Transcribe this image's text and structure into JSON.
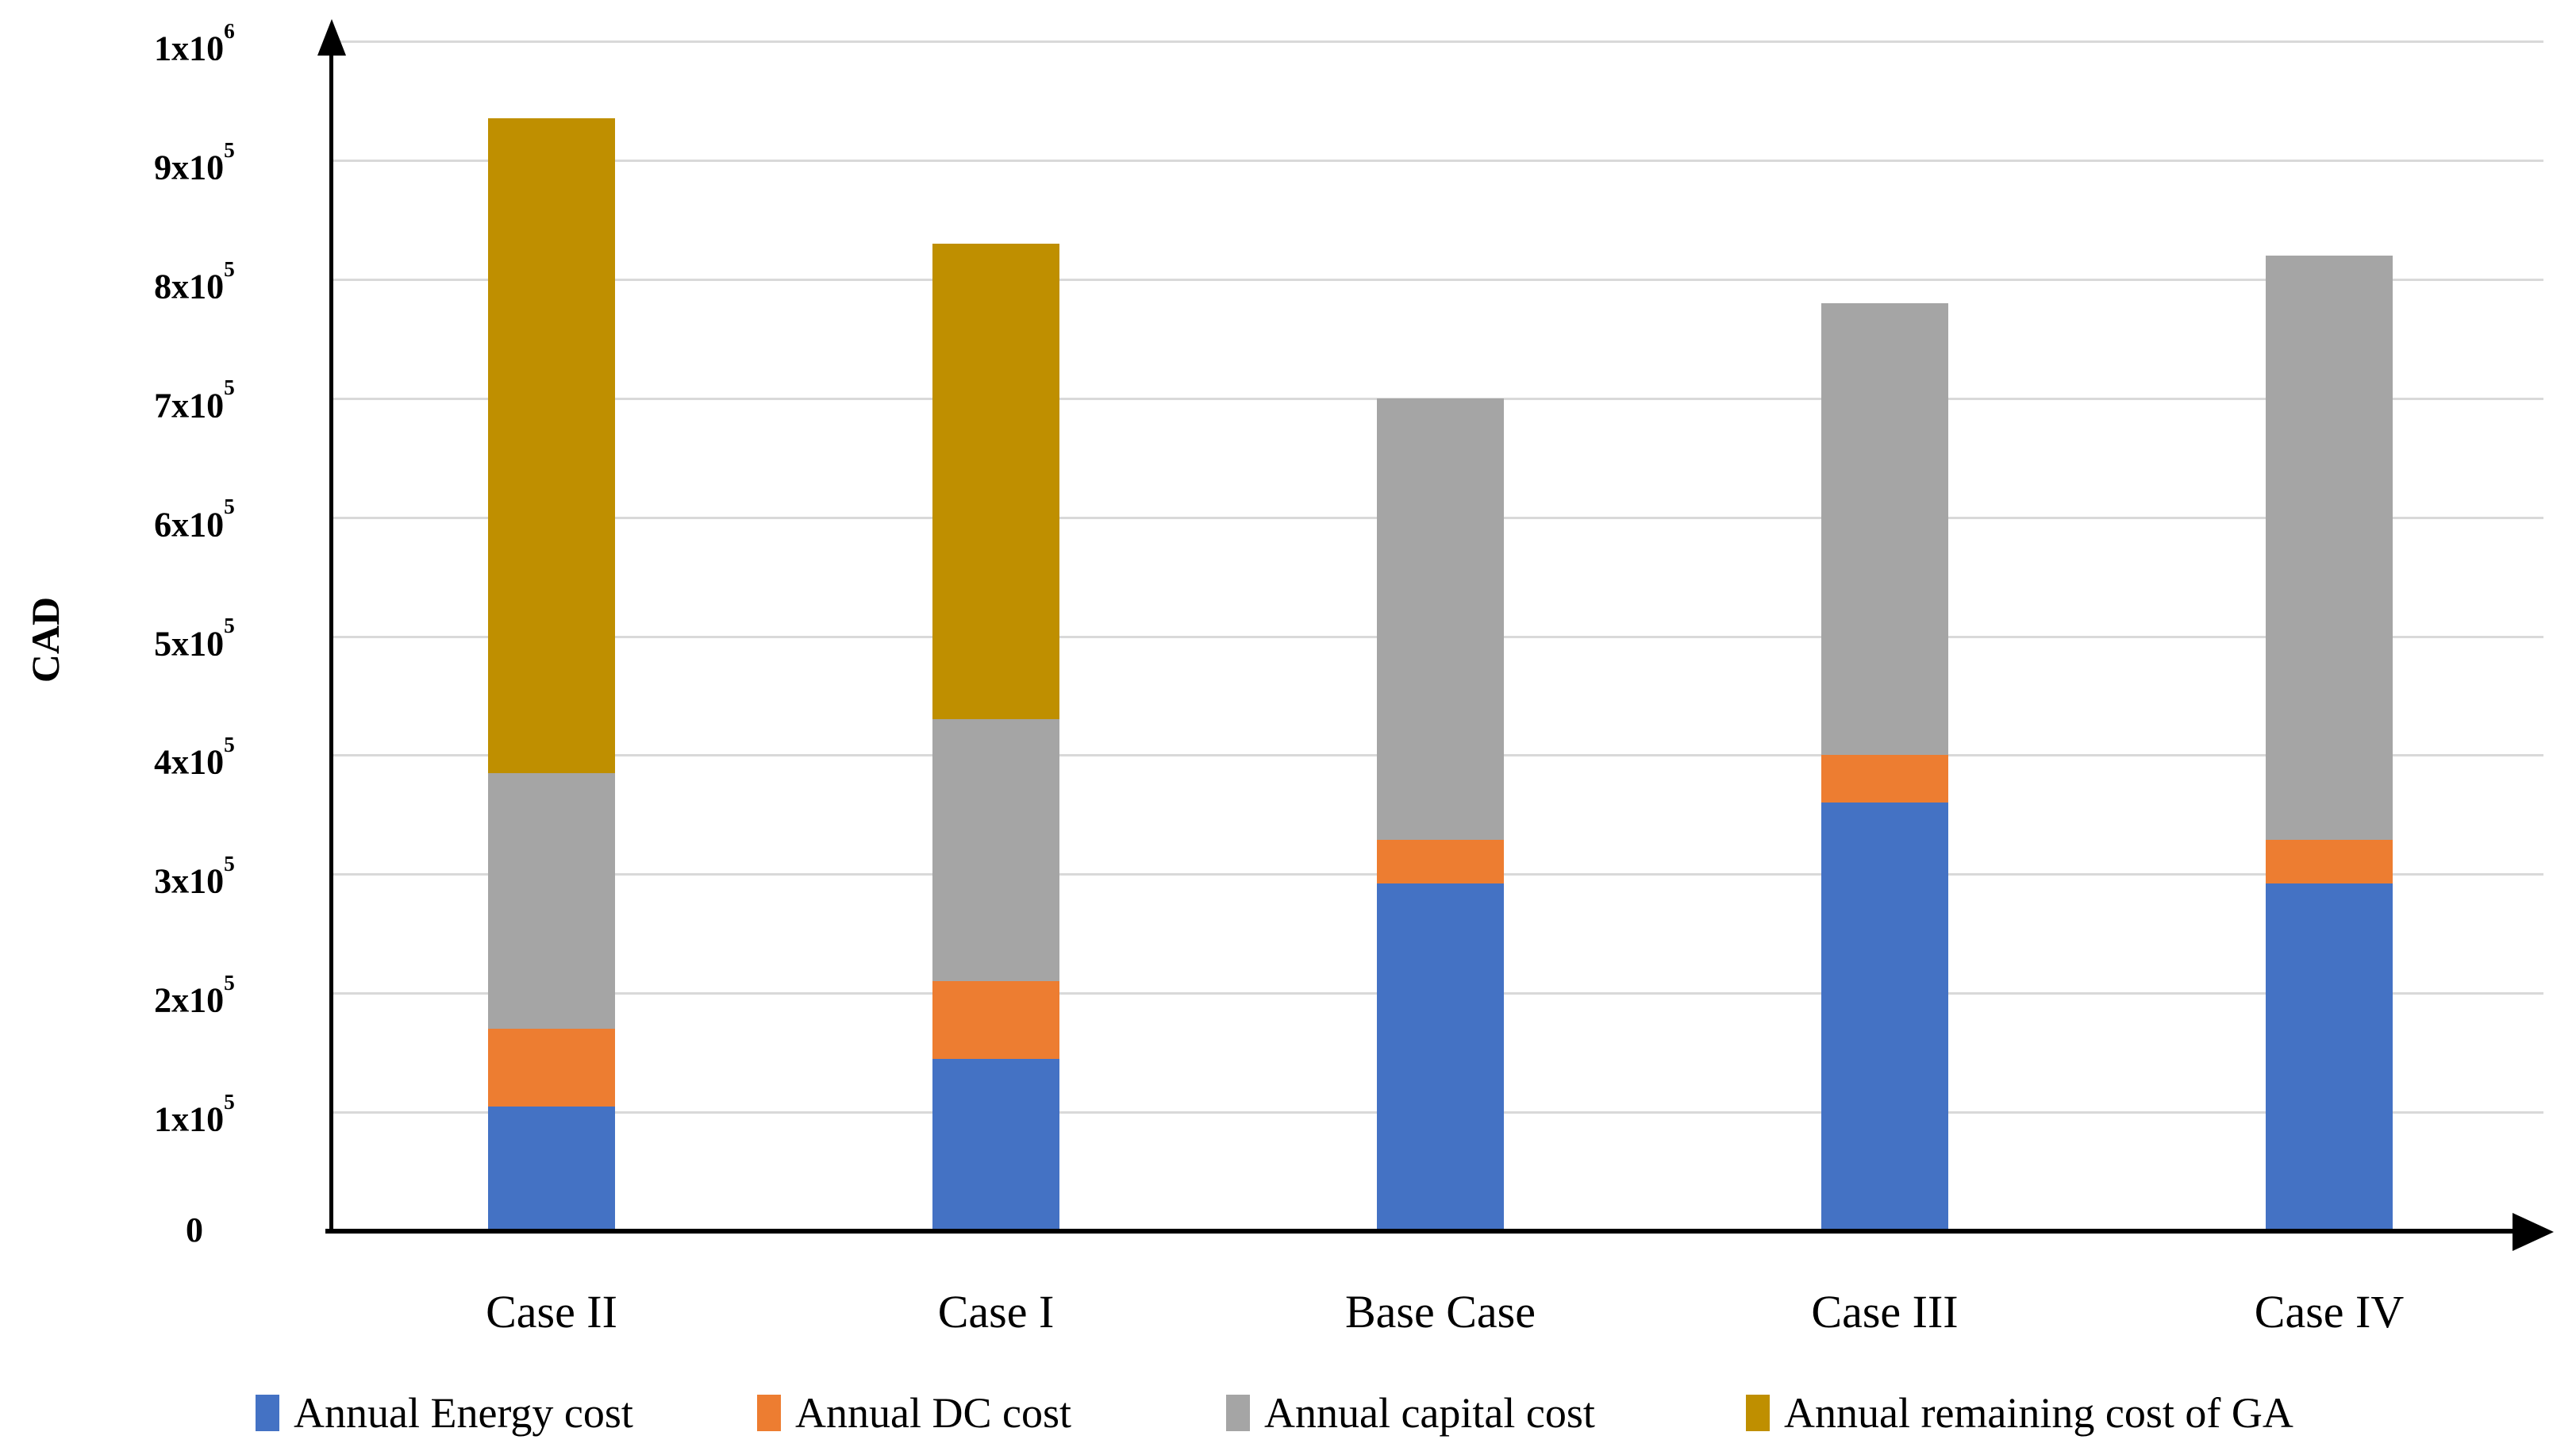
{
  "chart_data": {
    "type": "bar",
    "stacked": true,
    "title": "",
    "xlabel": "",
    "ylabel": "CAD",
    "grid": "horizontal",
    "legend_position": "bottom",
    "categories": [
      "Case II",
      "Case I",
      "Base Case",
      "Case III",
      "Case IV"
    ],
    "series": [
      {
        "name": "Annual Energy cost",
        "color": "#4472C4",
        "values": [
          105000,
          145000,
          292000,
          360000,
          292000
        ]
      },
      {
        "name": "Annual DC cost",
        "color": "#ED7D31",
        "values": [
          65000,
          65000,
          37000,
          40000,
          37000
        ]
      },
      {
        "name": "Annual capital cost",
        "color": "#A5A5A5",
        "values": [
          215000,
          220000,
          371000,
          380000,
          491000
        ]
      },
      {
        "name": "Annual remaining cost of GA",
        "color": "#BF8F00",
        "values": [
          550000,
          400000,
          0,
          0,
          0
        ]
      }
    ],
    "totals": [
      935000,
      830000,
      700000,
      780000,
      820000
    ],
    "y_axis": {
      "min": 0,
      "max": 1000000,
      "unit": "CAD",
      "ticks": [
        {
          "base": "0",
          "exp": "",
          "value": 0
        },
        {
          "base": "1x10",
          "exp": "5",
          "value": 100000
        },
        {
          "base": "2x10",
          "exp": "5",
          "value": 200000
        },
        {
          "base": "3x10",
          "exp": "5",
          "value": 300000
        },
        {
          "base": "4x10",
          "exp": "5",
          "value": 400000
        },
        {
          "base": "5x10",
          "exp": "5",
          "value": 500000
        },
        {
          "base": "6x10",
          "exp": "5",
          "value": 600000
        },
        {
          "base": "7x10",
          "exp": "5",
          "value": 700000
        },
        {
          "base": "8x10",
          "exp": "5",
          "value": 800000
        },
        {
          "base": "9x10",
          "exp": "5",
          "value": 900000
        },
        {
          "base": "1x10",
          "exp": "6",
          "value": 1000000
        }
      ]
    },
    "colors": {
      "gridline": "#D9D9D9",
      "axis": "#000000",
      "background": "#FFFFFF",
      "text": "#000000"
    }
  }
}
